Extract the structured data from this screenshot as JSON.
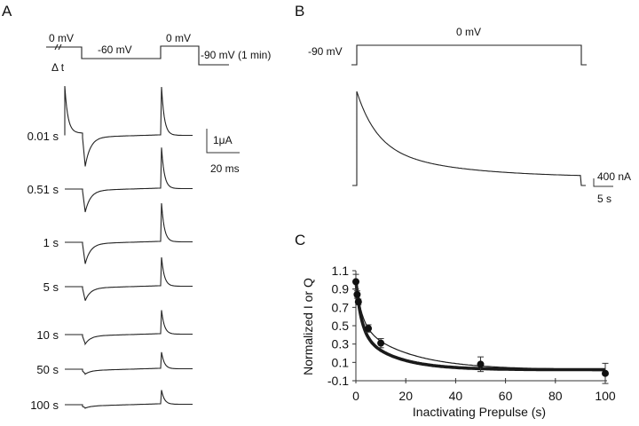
{
  "panels": {
    "A": {
      "label": "A",
      "protocol": {
        "pre_label": "0 mV",
        "delta_t_label": "Δ t",
        "step_label": "-60 mV",
        "test_label": "0 mV",
        "hold_label": "-90 mV (1 min)"
      },
      "traces": [
        {
          "label": "0.01 s",
          "onset_rel": 1.0,
          "inward_peak": 1.0,
          "outward_peak": 1.0
        },
        {
          "label": "0.51 s",
          "onset_rel": 0.0,
          "inward_peak": 0.75,
          "outward_peak": 0.85
        },
        {
          "label": "1 s",
          "onset_rel": 0.0,
          "inward_peak": 0.7,
          "outward_peak": 0.8
        },
        {
          "label": "5 s",
          "onset_rel": 0.0,
          "inward_peak": 0.45,
          "outward_peak": 0.6
        },
        {
          "label": "10 s",
          "onset_rel": 0.0,
          "inward_peak": 0.3,
          "outward_peak": 0.5
        },
        {
          "label": "50 s",
          "onset_rel": 0.0,
          "inward_peak": 0.15,
          "outward_peak": 0.35
        },
        {
          "label": "100 s",
          "onset_rel": 0.0,
          "inward_peak": 0.1,
          "outward_peak": 0.3
        }
      ],
      "scale_bar": {
        "current": "1μA",
        "time": "20 ms"
      }
    },
    "B": {
      "label": "B",
      "protocol": {
        "hold_label": "-90 mV",
        "step_label": "0 mV"
      },
      "scale_bar": {
        "current": "400 nA",
        "time": "5 s"
      }
    },
    "C": {
      "label": "C"
    }
  },
  "chart_data": {
    "type": "scatter",
    "title": "",
    "xlabel": "Inactivating Prepulse (s)",
    "ylabel": "Normalized I or Q",
    "xlim": [
      0,
      100
    ],
    "ylim": [
      -0.1,
      1.1
    ],
    "xticks": [
      "0",
      "20",
      "40",
      "60",
      "80",
      "100"
    ],
    "yticks": [
      "1.1",
      "0.9",
      "0.7",
      "0.5",
      "0.3",
      "0.1",
      "-0.1"
    ],
    "points": [
      {
        "x": 0,
        "y": 0.98,
        "err": 0.08
      },
      {
        "x": 0.5,
        "y": 0.84,
        "err": 0.04
      },
      {
        "x": 1,
        "y": 0.76,
        "err": 0.03
      },
      {
        "x": 5,
        "y": 0.47,
        "err": 0.04
      },
      {
        "x": 10,
        "y": 0.31,
        "err": 0.05
      },
      {
        "x": 50,
        "y": 0.08,
        "err": 0.08
      },
      {
        "x": 100,
        "y": -0.02,
        "err": 0.11
      }
    ],
    "fits": [
      {
        "name": "fit-thick",
        "a1": 0.55,
        "tau1": 2.2,
        "a2": 0.42,
        "tau2": 14,
        "c": 0.02
      },
      {
        "name": "fit-thin",
        "a1": 0.45,
        "tau1": 2.5,
        "a2": 0.5,
        "tau2": 20,
        "c": 0.02
      }
    ],
    "grid": false
  }
}
